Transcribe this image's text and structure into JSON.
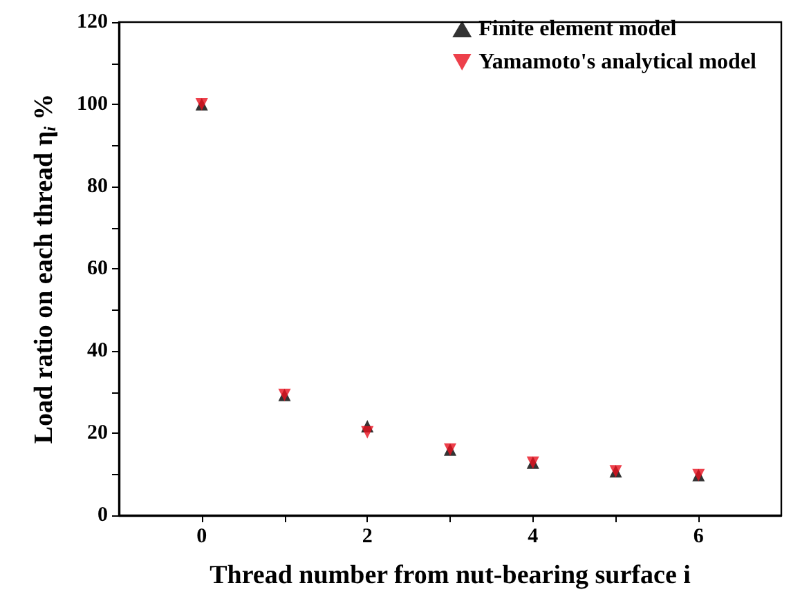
{
  "chart_data": {
    "type": "scatter",
    "xlabel": "Thread number from nut-bearing surface i",
    "ylabel": "Load ratio on each thread η$_{i}$ %",
    "x": [
      0,
      1,
      2,
      3,
      4,
      5,
      6
    ],
    "series": [
      {
        "name": "Finite element model",
        "color": "#000000",
        "marker": "triangle",
        "values": [
          100,
          29.3,
          21.7,
          16.0,
          12.8,
          10.7,
          9.8
        ]
      },
      {
        "name": "Yamamoto's analytical model",
        "color": "#e8101e",
        "marker": "triangle",
        "values": [
          100,
          29.3,
          20.2,
          16.0,
          12.8,
          10.7,
          9.8
        ]
      }
    ],
    "xlim": [
      -1,
      7
    ],
    "xticks": [
      0,
      {
        "value": 1,
        "label": null
      },
      2,
      {
        "value": 3,
        "label": null
      },
      4,
      {
        "value": 5,
        "label": null
      },
      6
    ],
    "ylim": [
      0,
      120
    ],
    "yticks": [
      0,
      {
        "value": 10,
        "label": null
      },
      20,
      {
        "value": 30,
        "label": null
      },
      40,
      {
        "value": 50,
        "label": null
      },
      60,
      {
        "value": 70,
        "label": null
      },
      80,
      {
        "value": 90,
        "label": null
      },
      100,
      {
        "value": 110,
        "label": null
      },
      120
    ],
    "grid": false,
    "legend": "top right"
  }
}
